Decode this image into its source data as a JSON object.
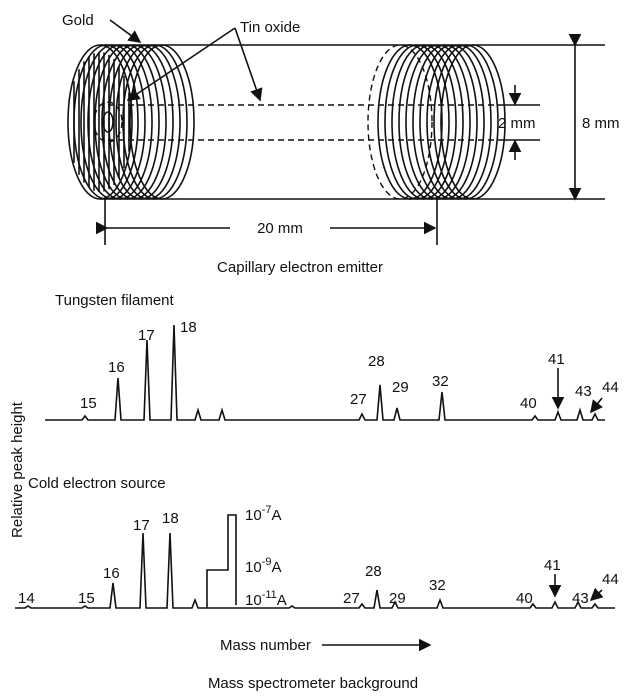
{
  "emitter": {
    "gold": "Gold",
    "tin_oxide": "Tin oxide",
    "inner_diameter": "2 mm",
    "outer_diameter": "8 mm",
    "length": "20 mm",
    "caption": "Capillary electron emitter"
  },
  "spectra": {
    "y_label": "Relative peak height",
    "x_label": "Mass number",
    "caption": "Mass spectrometer background",
    "panels": [
      {
        "title": "Tungsten filament",
        "peaks": [
          "15",
          "16",
          "17",
          "18",
          "27",
          "28",
          "29",
          "32",
          "40",
          "41",
          "43",
          "44"
        ]
      },
      {
        "title": "Cold electron source",
        "peaks": [
          "14",
          "15",
          "16",
          "17",
          "18",
          "27",
          "28",
          "29",
          "32",
          "40",
          "41",
          "43",
          "44"
        ],
        "scale_labels": [
          {
            "base": "10",
            "exp": "-7",
            "unit": "A"
          },
          {
            "base": "10",
            "exp": "-9",
            "unit": "A"
          },
          {
            "base": "10",
            "exp": "-11",
            "unit": "A"
          }
        ]
      }
    ]
  }
}
